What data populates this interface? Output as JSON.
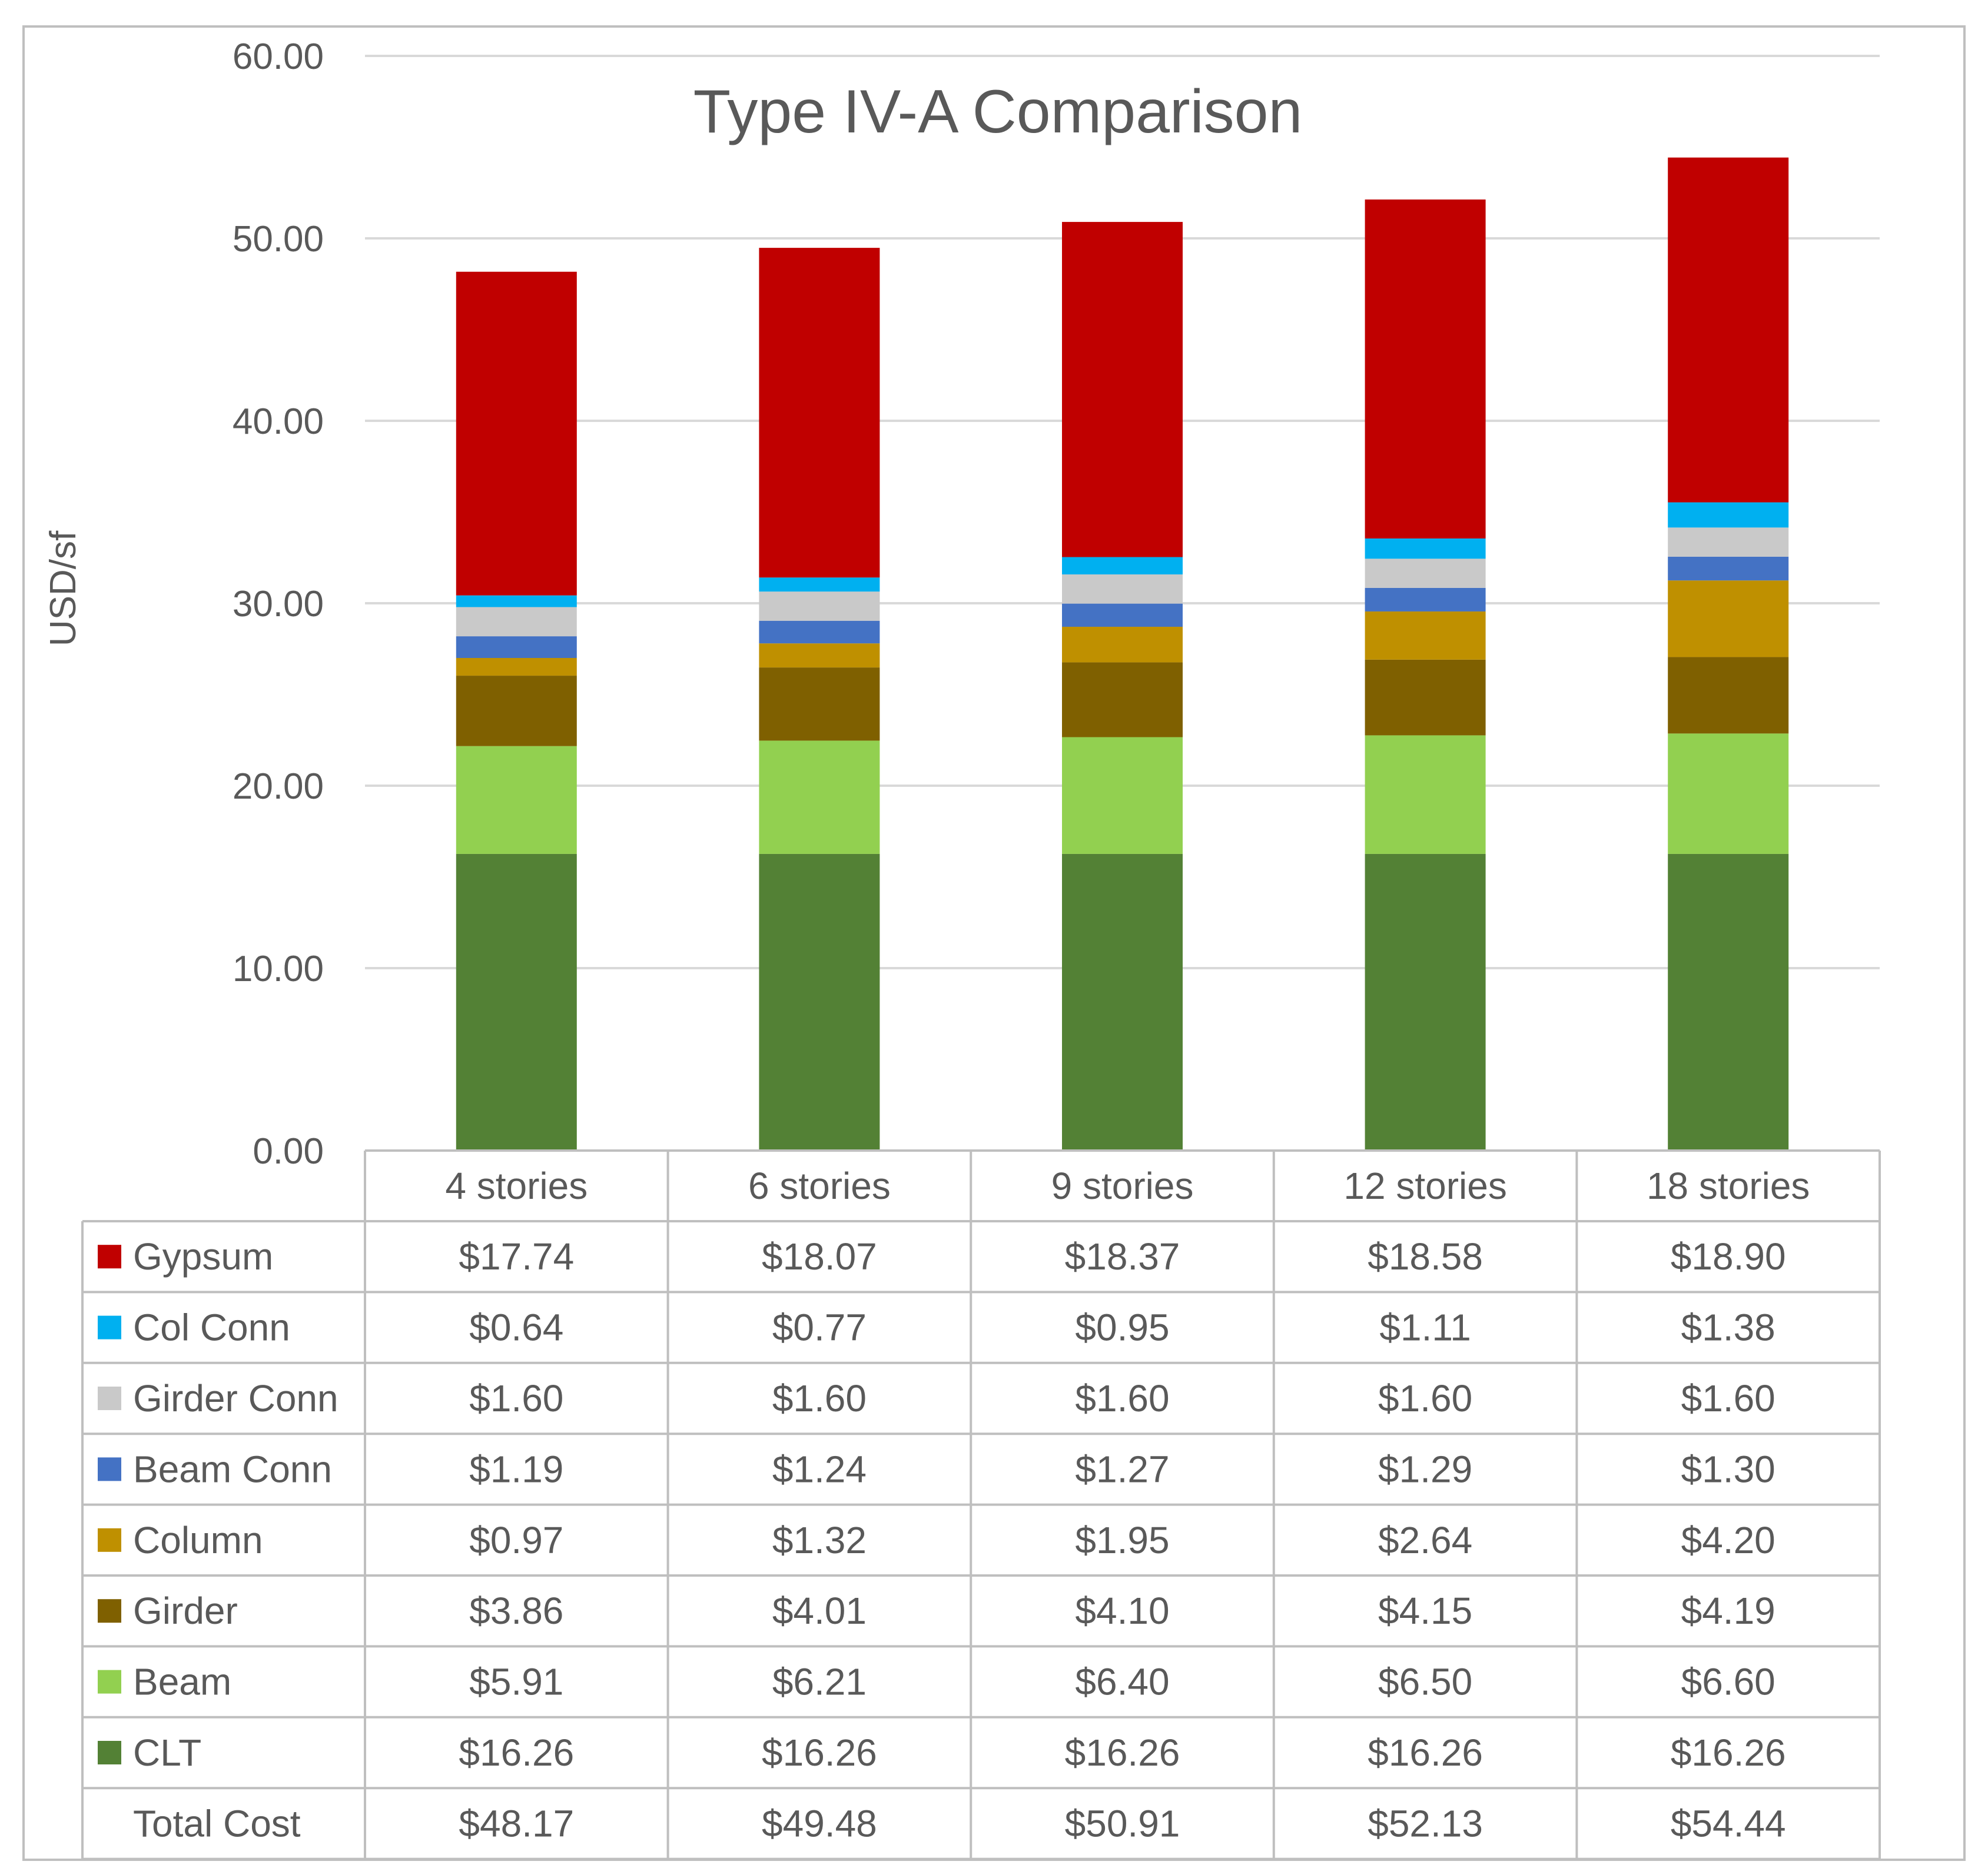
{
  "chart_data": {
    "type": "bar",
    "stacked": true,
    "title": "Type IV-A Comparison",
    "ylabel": "USD/sf",
    "xlabel": "",
    "ylim": [
      0,
      60
    ],
    "yticks": [
      "0.00",
      "10.00",
      "20.00",
      "30.00",
      "40.00",
      "50.00",
      "60.00"
    ],
    "categories": [
      "4 stories",
      "6 stories",
      "9 stories",
      "12 stories",
      "18 stories"
    ],
    "grid": true,
    "legend": "data-table",
    "series": [
      {
        "name": "Gypsum",
        "color": "#C00000",
        "values": [
          17.74,
          18.07,
          18.37,
          18.58,
          18.9
        ],
        "labels": [
          "$17.74",
          "$18.07",
          "$18.37",
          "$18.58",
          "$18.90"
        ]
      },
      {
        "name": "Col Conn",
        "color": "#00B0F0",
        "values": [
          0.64,
          0.77,
          0.95,
          1.11,
          1.38
        ],
        "labels": [
          "$0.64",
          "$0.77",
          "$0.95",
          "$1.11",
          "$1.38"
        ]
      },
      {
        "name": "Girder Conn",
        "color": "#C9C9C9",
        "values": [
          1.6,
          1.6,
          1.6,
          1.6,
          1.6
        ],
        "labels": [
          "$1.60",
          "$1.60",
          "$1.60",
          "$1.60",
          "$1.60"
        ]
      },
      {
        "name": "Beam Conn",
        "color": "#4472C4",
        "values": [
          1.19,
          1.24,
          1.27,
          1.29,
          1.3
        ],
        "labels": [
          "$1.19",
          "$1.24",
          "$1.27",
          "$1.29",
          "$1.30"
        ]
      },
      {
        "name": "Column",
        "color": "#BF9000",
        "values": [
          0.97,
          1.32,
          1.95,
          2.64,
          4.2
        ],
        "labels": [
          "$0.97",
          "$1.32",
          "$1.95",
          "$2.64",
          "$4.20"
        ]
      },
      {
        "name": "Girder",
        "color": "#7F6000",
        "values": [
          3.86,
          4.01,
          4.1,
          4.15,
          4.19
        ],
        "labels": [
          "$3.86",
          "$4.01",
          "$4.10",
          "$4.15",
          "$4.19"
        ]
      },
      {
        "name": "Beam",
        "color": "#92D050",
        "values": [
          5.91,
          6.21,
          6.4,
          6.5,
          6.6
        ],
        "labels": [
          "$5.91",
          "$6.21",
          "$6.40",
          "$6.50",
          "$6.60"
        ]
      },
      {
        "name": "CLT",
        "color": "#538135",
        "values": [
          16.26,
          16.26,
          16.26,
          16.26,
          16.26
        ],
        "labels": [
          "$16.26",
          "$16.26",
          "$16.26",
          "$16.26",
          "$16.26"
        ]
      }
    ],
    "total_row": {
      "name": "Total Cost",
      "values": [
        48.17,
        49.48,
        50.91,
        52.13,
        54.44
      ],
      "labels": [
        "$48.17",
        "$49.48",
        "$50.91",
        "$52.13",
        "$54.44"
      ]
    }
  },
  "colors": {
    "text": "#595959",
    "gridline": "#D9D9D9",
    "border": "#BFBFBF",
    "background": "#FFFFFF"
  }
}
